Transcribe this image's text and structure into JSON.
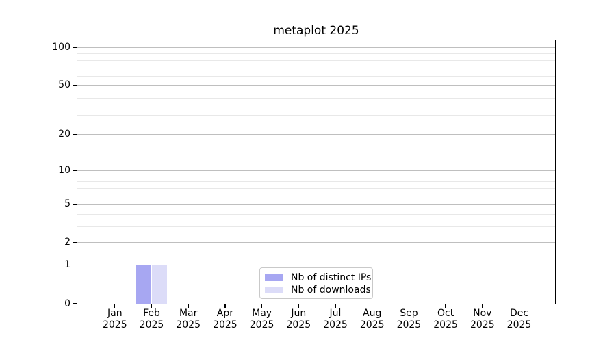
{
  "chart_data": {
    "type": "bar",
    "title": "metaplot 2025",
    "categories": [
      "Jan 2025",
      "Feb 2025",
      "Mar 2025",
      "Apr 2025",
      "May 2025",
      "Jun 2025",
      "Jul 2025",
      "Aug 2025",
      "Sep 2025",
      "Oct 2025",
      "Nov 2025",
      "Dec 2025"
    ],
    "series": [
      {
        "name": "Nb of distinct IPs",
        "color": "#a7a7f2",
        "values": [
          0,
          1,
          0,
          0,
          0,
          0,
          0,
          0,
          0,
          0,
          0,
          0
        ]
      },
      {
        "name": "Nb of downloads",
        "color": "#dcdcf8",
        "values": [
          0,
          1,
          0,
          0,
          0,
          0,
          0,
          0,
          0,
          0,
          0,
          0
        ]
      }
    ],
    "xlabel": "",
    "ylabel": "",
    "yscale": "log1p",
    "y_major_ticks": [
      0,
      1,
      2,
      5,
      10,
      20,
      50,
      100
    ],
    "y_major_tick_labels": [
      "0",
      "1",
      "2",
      "5",
      "10",
      "20",
      "50",
      "100"
    ],
    "y_minor_ticks": [
      3,
      4,
      6,
      7,
      8,
      9,
      29,
      39,
      59,
      69,
      79,
      89
    ],
    "ylim": [
      0,
      115
    ],
    "grid": true,
    "legend": {
      "position": "lower center",
      "entries": [
        "Nb of distinct IPs",
        "Nb of downloads"
      ]
    },
    "colors": {
      "bar_distinct_ips": "#a7a7f2",
      "bar_downloads": "#dcdcf8",
      "major_grid": "#bfbfbf",
      "minor_grid": "#e8e8e8",
      "axis": "#000000",
      "legend_border": "#c9c9c9",
      "background": "#ffffff"
    }
  }
}
